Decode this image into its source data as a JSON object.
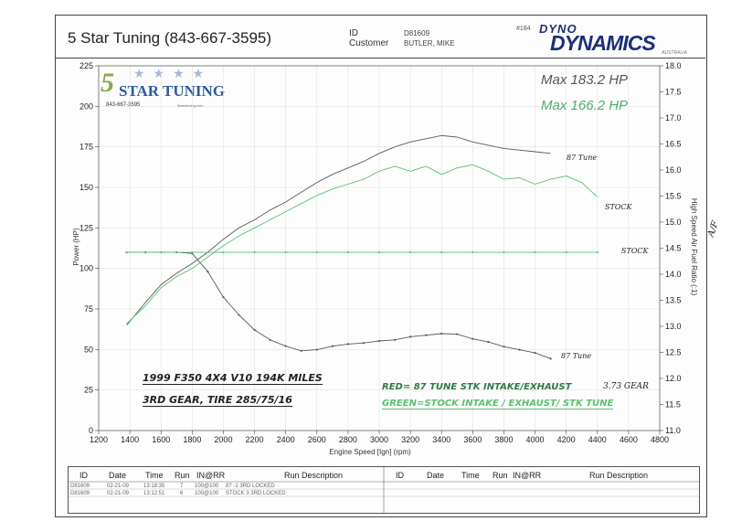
{
  "header": {
    "shop_name": "5 Star Tuning (843-667-3595)",
    "id_label": "ID",
    "id_value": "D81609",
    "customer_label": "Customer",
    "customer_value": "BUTLER, MIKE",
    "run_no": "#184",
    "brand_top": "DYNO",
    "brand_main": "DYNAMICS",
    "brand_sub": "AUSTRALIA"
  },
  "logo": {
    "five": "5",
    "text": "STAR TUNING",
    "stars": "★★★★",
    "phone": "843-667-3595",
    "url": "5startuning.com"
  },
  "annotations": {
    "max_red": "Max 183.2 HP",
    "max_green": "Max 166.2 HP",
    "tune87_top": "87 Tune",
    "stock_top": "STOCK",
    "stock_afr": "STOCK",
    "tune87_afr": "87 Tune",
    "af": "A/F",
    "vehicle_line1": "1999 F350 4X4 V10  194K MILES",
    "vehicle_line2": "3RD GEAR, TIRE 285/75/16",
    "legend_red": "RED= 87 TUNE STK INTAKE/EXHAUST",
    "legend_green": "GREEN=STOCK INTAKE / EXHAUST/ STK TUNE",
    "gear": "3.73 GEAR"
  },
  "chart_data": {
    "type": "line",
    "xlabel": "Engine Speed [Ign] (rpm)",
    "ylabel": "Power (HP)",
    "y2label": "High Speed Air Fuel Ratio (:1)",
    "xlim": [
      1200,
      4800
    ],
    "ylim": [
      0,
      225
    ],
    "y2lim": [
      11.0,
      18.0
    ],
    "x_ticks": [
      "1200",
      "1400",
      "1600",
      "1800",
      "2000",
      "2200",
      "2400",
      "2600",
      "2800",
      "3000",
      "3200",
      "3400",
      "3600",
      "3800",
      "4000",
      "4200",
      "4400",
      "4600",
      "4800"
    ],
    "y_ticks": [
      "0",
      "25",
      "50",
      "75",
      "100",
      "125",
      "150",
      "175",
      "200",
      "225"
    ],
    "y2_ticks": [
      "11.0",
      "11.5",
      "12.0",
      "12.5",
      "13.0",
      "13.5",
      "14.0",
      "14.5",
      "15.0",
      "15.5",
      "16.0",
      "16.5",
      "17.0",
      "17.5",
      "18.0"
    ],
    "series": [
      {
        "name": "87 Tune power",
        "axis": "left",
        "color": "#5a5a5a",
        "x": [
          1380,
          1500,
          1600,
          1700,
          1800,
          1900,
          2000,
          2100,
          2200,
          2300,
          2400,
          2500,
          2600,
          2700,
          2800,
          2900,
          3000,
          3100,
          3200,
          3300,
          3400,
          3500,
          3600,
          3700,
          3800,
          3900,
          4000,
          4100
        ],
        "y": [
          65,
          79,
          90,
          97,
          103,
          110,
          118,
          125,
          130,
          136,
          141,
          147,
          153,
          158,
          162,
          166,
          171,
          175,
          178,
          180,
          182,
          181,
          178,
          176,
          174,
          173,
          172,
          171
        ]
      },
      {
        "name": "Stock power",
        "axis": "left",
        "color": "#5cbf72",
        "x": [
          1380,
          1500,
          1600,
          1700,
          1800,
          1900,
          2000,
          2100,
          2200,
          2300,
          2400,
          2500,
          2600,
          2700,
          2800,
          2900,
          3000,
          3100,
          3200,
          3300,
          3400,
          3500,
          3600,
          3700,
          3800,
          3900,
          4000,
          4100,
          4200,
          4300,
          4400
        ],
        "y": [
          66,
          77,
          88,
          95,
          100,
          107,
          114,
          120,
          125,
          130,
          135,
          140,
          145,
          149,
          152,
          155,
          160,
          163,
          160,
          163,
          158,
          162,
          164,
          160,
          155,
          156,
          152,
          155,
          157,
          153,
          144
        ]
      },
      {
        "name": "87 Tune A/F",
        "axis": "right",
        "color": "#5a5a5a",
        "x": [
          1380,
          1500,
          1600,
          1700,
          1800,
          1900,
          2000,
          2100,
          2200,
          2300,
          2400,
          2500,
          2600,
          2700,
          2800,
          2900,
          3000,
          3100,
          3200,
          3300,
          3400,
          3500,
          3600,
          3700,
          3800,
          3900,
          4000,
          4100
        ],
        "y": [
          14.42,
          14.42,
          14.42,
          14.42,
          14.4,
          14.05,
          13.56,
          13.22,
          12.93,
          12.74,
          12.62,
          12.53,
          12.55,
          12.62,
          12.66,
          12.68,
          12.72,
          12.74,
          12.8,
          12.83,
          12.86,
          12.85,
          12.76,
          12.7,
          12.61,
          12.55,
          12.49,
          12.38
        ]
      },
      {
        "name": "Stock A/F",
        "axis": "right",
        "color": "#5cbf72",
        "x": [
          1380,
          1600,
          1800,
          2000,
          2200,
          2400,
          2600,
          2800,
          3000,
          3200,
          3400,
          3600,
          3800,
          4000,
          4200,
          4400
        ],
        "y": [
          14.42,
          14.42,
          14.42,
          14.42,
          14.42,
          14.42,
          14.42,
          14.42,
          14.42,
          14.42,
          14.42,
          14.42,
          14.42,
          14.42,
          14.42,
          14.42
        ]
      }
    ]
  },
  "table": {
    "headers": [
      "ID",
      "Date",
      "Time",
      "Run",
      "IN@RR",
      "Run Description",
      "ID",
      "Date",
      "Time",
      "Run",
      "IN@RR",
      "Run Description"
    ],
    "rows": [
      {
        "id": "D81609",
        "date": "02-21-09",
        "time": "13:18:35",
        "run": "7",
        "inrr": "100@100",
        "desc": "87 -1 3RD LOCKED"
      },
      {
        "id": "D81609",
        "date": "02-21-09",
        "time": "13:12:51",
        "run": "6",
        "inrr": "100@100",
        "desc": "STOCK 3 3RD LOCKED"
      }
    ]
  }
}
